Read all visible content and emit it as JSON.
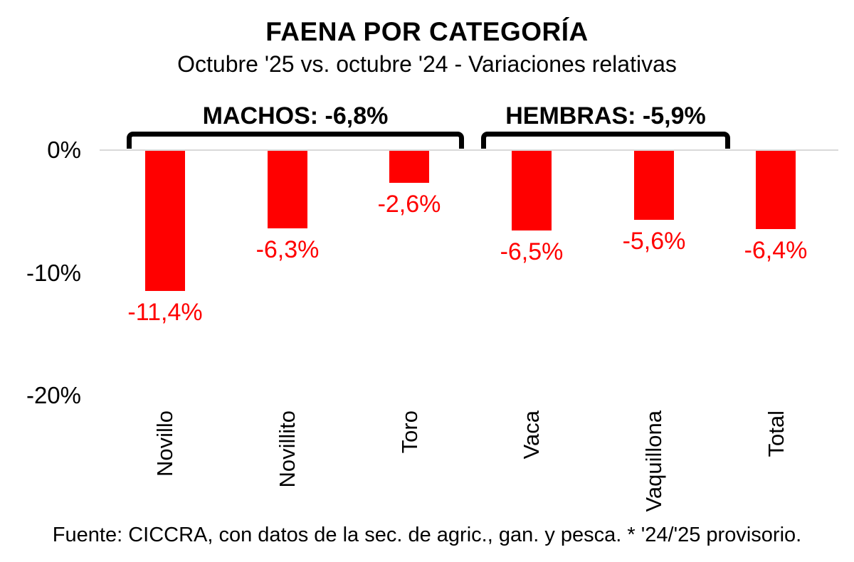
{
  "title": "FAENA POR CATEGORÍA",
  "subtitle": "Octubre '25 vs. octubre '24 - Variaciones relativas",
  "footer": "Fuente: CICCRA, con datos de la sec. de agric., gan. y pesca. * '24/'25 provisorio.",
  "colors": {
    "bar": "#FF0000",
    "value_label": "#FF0000",
    "text": "#000000",
    "gridline": "#D9D9D9",
    "bracket": "#000000",
    "background": "#FFFFFF"
  },
  "chart_data": {
    "type": "bar",
    "title": "FAENA POR CATEGORÍA",
    "subtitle": "Octubre '25 vs. octubre '24 - Variaciones relativas",
    "categories": [
      "Novillo",
      "Novillito",
      "Toro",
      "Vaca",
      "Vaquillona",
      "Total"
    ],
    "values": [
      -11.4,
      -6.3,
      -2.6,
      -6.5,
      -5.6,
      -6.4
    ],
    "value_labels": [
      "-11,4%",
      "-6,3%",
      "-2,6%",
      "-6,5%",
      "-5,6%",
      "-6,4%"
    ],
    "xlabel": "",
    "ylabel": "",
    "ylim": [
      -20,
      0
    ],
    "grid": false,
    "legend": false,
    "y_axis": {
      "ticks": [
        {
          "label": "0%",
          "value": 0
        },
        {
          "label": "-10%",
          "value": -10
        },
        {
          "label": "-20%",
          "value": -20
        }
      ]
    },
    "annotations": [
      {
        "label": "MACHOS: -6,8%",
        "group": "machos",
        "categories": [
          "Novillo",
          "Novillito",
          "Toro"
        ]
      },
      {
        "label": "HEMBRAS: -5,9%",
        "group": "hembras",
        "categories": [
          "Vaca",
          "Vaquillona"
        ]
      }
    ],
    "source": "Fuente: CICCRA, con datos de la sec. de agric., gan. y pesca. * '24/'25 provisorio."
  }
}
